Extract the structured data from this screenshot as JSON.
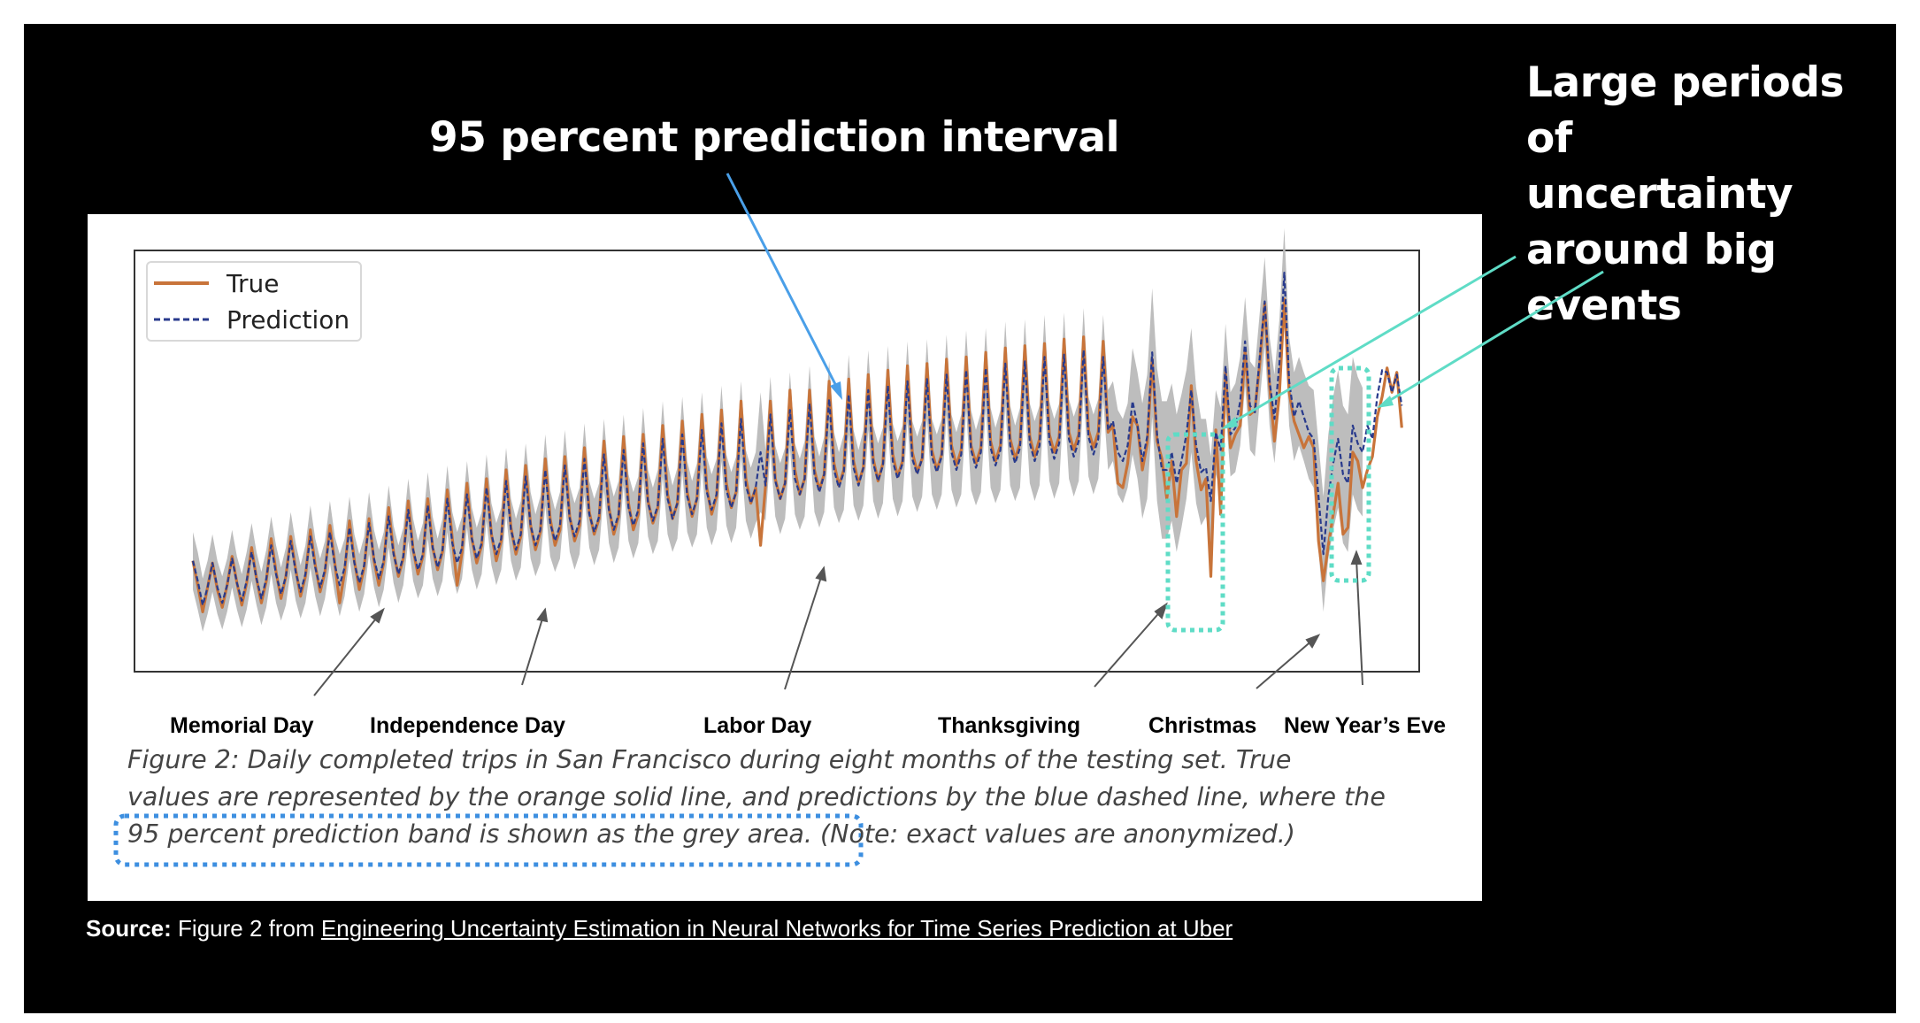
{
  "headings": {
    "interval": "95 percent prediction interval",
    "uncertainty_lines": [
      "Large periods of",
      "uncertainty",
      "around big",
      "events"
    ]
  },
  "events": [
    "Memorial Day",
    "Independence Day",
    "Labor Day",
    "Thanksgiving",
    "Christmas",
    "New Year’s Eve"
  ],
  "caption": {
    "line1": "Figure 2: Daily completed trips in San Francisco during eight months of the testing set. True",
    "line2": "values are represented by the orange solid line, and predictions by the blue dashed line, where the",
    "line3a": "95 percent prediction band is shown as the grey area.",
    "line3b": "(Note: exact values are anonymized.)"
  },
  "source": {
    "prefix": "Source:",
    "text": "Figure 2 from",
    "link": "Engineering Uncertainty Estimation in Neural Networks for Time Series Prediction at Uber"
  },
  "colors": {
    "true_line": "#c8743a",
    "prediction_line": "#283a8c",
    "band": "#bdbdbd",
    "arrow_blue": "#4a9fe8",
    "arrow_teal": "#5fdcc6",
    "highlight_teal": "#5fdcc6",
    "highlight_blue": "#3d8fe0"
  },
  "chart_data": {
    "type": "line",
    "title": "",
    "xlabel": "",
    "ylabel": "",
    "legend": {
      "position": "top-left",
      "entries": [
        "True",
        "Prediction"
      ]
    },
    "grid": false,
    "n_days": 240,
    "event_days": {
      "Memorial Day": 30,
      "Independence Day": 53,
      "Labor Day": 116,
      "Thanksgiving": 195,
      "Christmas": 219,
      "New Year’s Eve": 226
    },
    "note": "",
    "series": [
      {
        "name": "True",
        "style": "solid",
        "values": [
          0.25,
          0.14,
          0.02,
          0.13,
          0.24,
          0.12,
          0.04,
          0.14,
          0.27,
          0.15,
          0.05,
          0.15,
          0.31,
          0.17,
          0.06,
          0.16,
          0.35,
          0.2,
          0.08,
          0.18,
          0.36,
          0.21,
          0.09,
          0.18,
          0.39,
          0.23,
          0.11,
          0.2,
          0.41,
          0.24,
          0.06,
          0.2,
          0.43,
          0.25,
          0.12,
          0.22,
          0.44,
          0.25,
          0.14,
          0.24,
          0.49,
          0.29,
          0.18,
          0.26,
          0.52,
          0.3,
          0.19,
          0.27,
          0.53,
          0.31,
          0.21,
          0.29,
          0.57,
          0.35,
          0.14,
          0.29,
          0.6,
          0.35,
          0.24,
          0.32,
          0.62,
          0.37,
          0.25,
          0.34,
          0.66,
          0.4,
          0.28,
          0.36,
          0.68,
          0.41,
          0.3,
          0.38,
          0.71,
          0.44,
          0.32,
          0.39,
          0.72,
          0.45,
          0.34,
          0.41,
          0.76,
          0.47,
          0.37,
          0.44,
          0.79,
          0.49,
          0.37,
          0.45,
          0.81,
          0.51,
          0.39,
          0.46,
          0.82,
          0.52,
          0.42,
          0.49,
          0.86,
          0.55,
          0.44,
          0.51,
          0.88,
          0.56,
          0.45,
          0.53,
          0.91,
          0.58,
          0.46,
          0.54,
          0.93,
          0.6,
          0.49,
          0.56,
          0.97,
          0.62,
          0.51,
          0.58,
          0.32,
          0.59,
          0.97,
          0.62,
          0.53,
          0.6,
          1.02,
          0.66,
          0.55,
          0.62,
          1.02,
          0.66,
          0.57,
          0.64,
          1.06,
          0.69,
          0.59,
          0.66,
          1.07,
          0.7,
          0.6,
          0.67,
          1.09,
          0.71,
          0.61,
          0.69,
          1.11,
          0.73,
          0.63,
          0.7,
          1.13,
          0.74,
          0.65,
          0.71,
          1.14,
          0.75,
          0.66,
          0.73,
          1.16,
          0.77,
          0.68,
          0.75,
          1.17,
          0.77,
          0.69,
          0.76,
          1.19,
          0.79,
          0.7,
          0.77,
          1.21,
          0.8,
          0.71,
          0.78,
          1.22,
          0.81,
          0.72,
          0.8,
          1.23,
          0.82,
          0.74,
          0.81,
          1.25,
          0.83,
          0.75,
          0.82,
          1.26,
          0.84,
          0.76,
          0.83,
          1.24,
          0.83,
          0.86,
          0.6,
          0.58,
          0.69,
          0.9,
          0.86,
          0.66,
          0.78,
          1.16,
          0.79,
          0.71,
          0.53,
          0.7,
          0.45,
          0.66,
          0.69,
          1.04,
          0.7,
          0.57,
          0.62,
          0.18,
          0.84,
          0.46,
          1.1,
          0.76,
          0.82,
          0.86,
          1.2,
          0.91,
          0.93,
          1.14,
          1.41,
          1.04,
          0.79,
          1.0,
          1.43,
          1.01,
          0.88,
          0.82,
          0.76,
          0.81,
          0.76,
          0.34,
          0.16,
          0.32,
          0.46,
          0.6,
          0.37,
          0.4,
          0.74,
          0.7,
          0.58,
          0.66,
          0.72,
          0.9,
          0.99,
          1.12,
          1.01,
          1.1,
          0.85
        ]
      },
      {
        "name": "Prediction",
        "style": "dashed",
        "values": [
          0.25,
          0.16,
          0.05,
          0.13,
          0.24,
          0.13,
          0.06,
          0.14,
          0.26,
          0.15,
          0.07,
          0.16,
          0.29,
          0.17,
          0.08,
          0.17,
          0.32,
          0.19,
          0.1,
          0.18,
          0.34,
          0.2,
          0.11,
          0.19,
          0.36,
          0.22,
          0.13,
          0.21,
          0.38,
          0.23,
          0.14,
          0.22,
          0.4,
          0.24,
          0.15,
          0.23,
          0.42,
          0.26,
          0.17,
          0.25,
          0.45,
          0.28,
          0.19,
          0.27,
          0.48,
          0.3,
          0.21,
          0.28,
          0.5,
          0.31,
          0.22,
          0.3,
          0.53,
          0.33,
          0.24,
          0.31,
          0.55,
          0.35,
          0.26,
          0.33,
          0.58,
          0.37,
          0.28,
          0.35,
          0.61,
          0.39,
          0.3,
          0.37,
          0.63,
          0.41,
          0.32,
          0.39,
          0.66,
          0.42,
          0.34,
          0.41,
          0.68,
          0.44,
          0.36,
          0.43,
          0.71,
          0.46,
          0.38,
          0.45,
          0.73,
          0.48,
          0.39,
          0.46,
          0.75,
          0.49,
          0.41,
          0.48,
          0.78,
          0.51,
          0.43,
          0.5,
          0.8,
          0.53,
          0.44,
          0.51,
          0.82,
          0.54,
          0.46,
          0.53,
          0.84,
          0.56,
          0.48,
          0.55,
          0.87,
          0.57,
          0.49,
          0.56,
          0.89,
          0.59,
          0.51,
          0.58,
          0.74,
          0.59,
          0.91,
          0.61,
          0.53,
          0.6,
          0.93,
          0.62,
          0.55,
          0.62,
          0.96,
          0.64,
          0.56,
          0.64,
          0.98,
          0.66,
          0.58,
          0.65,
          1.0,
          0.67,
          0.59,
          0.67,
          1.02,
          0.69,
          0.61,
          0.68,
          1.04,
          0.7,
          0.62,
          0.69,
          1.06,
          0.71,
          0.64,
          0.71,
          1.07,
          0.72,
          0.65,
          0.72,
          1.09,
          0.74,
          0.66,
          0.73,
          1.11,
          0.75,
          0.67,
          0.74,
          1.12,
          0.76,
          0.68,
          0.75,
          1.14,
          0.77,
          0.69,
          0.76,
          1.15,
          0.78,
          0.7,
          0.77,
          1.17,
          0.79,
          0.71,
          0.78,
          1.18,
          0.8,
          0.72,
          0.79,
          1.2,
          0.81,
          0.73,
          0.8,
          1.17,
          0.84,
          0.88,
          0.74,
          0.7,
          0.77,
          0.97,
          0.86,
          0.7,
          0.81,
          1.19,
          0.82,
          0.66,
          0.66,
          0.74,
          0.6,
          0.7,
          0.82,
          1.02,
          0.77,
          0.65,
          0.67,
          0.52,
          0.83,
          0.75,
          1.13,
          0.82,
          0.85,
          0.97,
          1.24,
          0.95,
          0.92,
          1.17,
          1.42,
          1.06,
          0.89,
          1.14,
          1.55,
          1.06,
          0.9,
          0.97,
          0.9,
          0.83,
          0.8,
          0.54,
          0.28,
          0.54,
          0.69,
          0.8,
          0.64,
          0.6,
          0.86,
          0.78,
          0.74,
          0.86,
          0.8,
          0.99,
          1.11,
          1.1,
          1.01,
          1.09,
          0.95
        ]
      }
    ],
    "band": {
      "name": "95 percent prediction band",
      "half_width": [
        0.13,
        0.13,
        0.12,
        0.12,
        0.13,
        0.12,
        0.12,
        0.12,
        0.13,
        0.12,
        0.12,
        0.13,
        0.13,
        0.12,
        0.12,
        0.13,
        0.13,
        0.13,
        0.12,
        0.13,
        0.13,
        0.13,
        0.12,
        0.13,
        0.14,
        0.13,
        0.13,
        0.13,
        0.14,
        0.13,
        0.14,
        0.13,
        0.14,
        0.13,
        0.13,
        0.13,
        0.14,
        0.13,
        0.13,
        0.13,
        0.14,
        0.13,
        0.13,
        0.13,
        0.14,
        0.14,
        0.13,
        0.14,
        0.15,
        0.14,
        0.13,
        0.14,
        0.15,
        0.14,
        0.14,
        0.14,
        0.15,
        0.14,
        0.14,
        0.14,
        0.15,
        0.14,
        0.14,
        0.14,
        0.15,
        0.14,
        0.14,
        0.15,
        0.15,
        0.15,
        0.14,
        0.15,
        0.16,
        0.15,
        0.14,
        0.15,
        0.16,
        0.15,
        0.15,
        0.15,
        0.16,
        0.15,
        0.15,
        0.15,
        0.16,
        0.15,
        0.15,
        0.15,
        0.16,
        0.15,
        0.15,
        0.15,
        0.16,
        0.15,
        0.15,
        0.16,
        0.17,
        0.16,
        0.15,
        0.16,
        0.17,
        0.16,
        0.15,
        0.16,
        0.17,
        0.16,
        0.16,
        0.16,
        0.17,
        0.16,
        0.16,
        0.16,
        0.17,
        0.16,
        0.16,
        0.16,
        0.27,
        0.16,
        0.17,
        0.16,
        0.16,
        0.16,
        0.17,
        0.16,
        0.16,
        0.17,
        0.17,
        0.17,
        0.16,
        0.17,
        0.17,
        0.17,
        0.16,
        0.17,
        0.18,
        0.17,
        0.16,
        0.17,
        0.18,
        0.17,
        0.17,
        0.17,
        0.18,
        0.17,
        0.17,
        0.17,
        0.18,
        0.17,
        0.17,
        0.17,
        0.18,
        0.17,
        0.17,
        0.17,
        0.18,
        0.17,
        0.17,
        0.18,
        0.18,
        0.18,
        0.17,
        0.18,
        0.18,
        0.18,
        0.17,
        0.18,
        0.19,
        0.18,
        0.17,
        0.18,
        0.19,
        0.18,
        0.18,
        0.18,
        0.19,
        0.18,
        0.18,
        0.18,
        0.19,
        0.18,
        0.18,
        0.18,
        0.19,
        0.18,
        0.18,
        0.18,
        0.19,
        0.18,
        0.18,
        0.19,
        0.19,
        0.19,
        0.24,
        0.24,
        0.26,
        0.28,
        0.29,
        0.3,
        0.31,
        0.31,
        0.31,
        0.31,
        0.3,
        0.29,
        0.28,
        0.26,
        0.24,
        0.22,
        0.2,
        0.19,
        0.19,
        0.19,
        0.19,
        0.2,
        0.2,
        0.2,
        0.2,
        0.2,
        0.2,
        0.2,
        0.2,
        0.2,
        0.2,
        0.2,
        0.2,
        0.2,
        0.2,
        0.2,
        0.21,
        0.22,
        0.24,
        0.26,
        0.28,
        0.3,
        0.31,
        0.31,
        0.31,
        0.31,
        0.3,
        0.29,
        0.28,
        0.26,
        0.24,
        0.22,
        0.2,
        0.2,
        0.2,
        0.2
      ]
    },
    "ylim": [
      -0.25,
      1.65
    ]
  }
}
